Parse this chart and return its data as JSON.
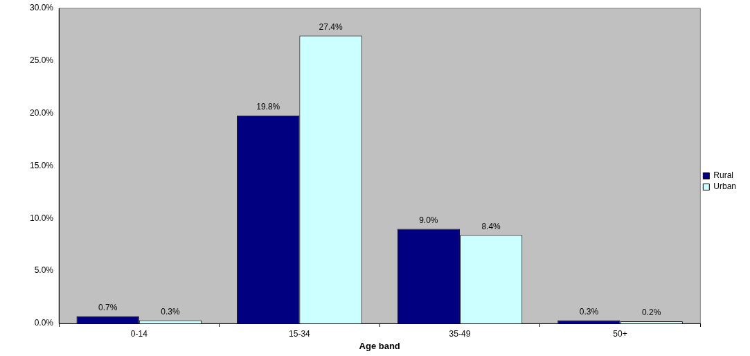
{
  "chart_data": {
    "type": "bar",
    "xlabel": "Age band",
    "categories": [
      "0-14",
      "15-34",
      "35-49",
      "50+"
    ],
    "series": [
      {
        "name": "Rural",
        "color": "#000080",
        "values": [
          0.7,
          19.8,
          9.0,
          0.3
        ],
        "value_labels": [
          "0.7%",
          "19.8%",
          "9.0%",
          "0.3%"
        ]
      },
      {
        "name": "Urban",
        "color": "#ccffff",
        "values": [
          0.3,
          27.4,
          8.4,
          0.2
        ],
        "value_labels": [
          "0.3%",
          "27.4%",
          "8.4%",
          "0.2%"
        ]
      }
    ],
    "ylim": [
      0,
      30
    ],
    "yticks": [
      {
        "value": 0,
        "label": "0.0%"
      },
      {
        "value": 5,
        "label": "5.0%"
      },
      {
        "value": 10,
        "label": "10.0%"
      },
      {
        "value": 15,
        "label": "15.0%"
      },
      {
        "value": 20,
        "label": "20.0%"
      },
      {
        "value": 25,
        "label": "25.0%"
      },
      {
        "value": 30,
        "label": "30.0%"
      }
    ],
    "grid": false,
    "legend": "right"
  }
}
